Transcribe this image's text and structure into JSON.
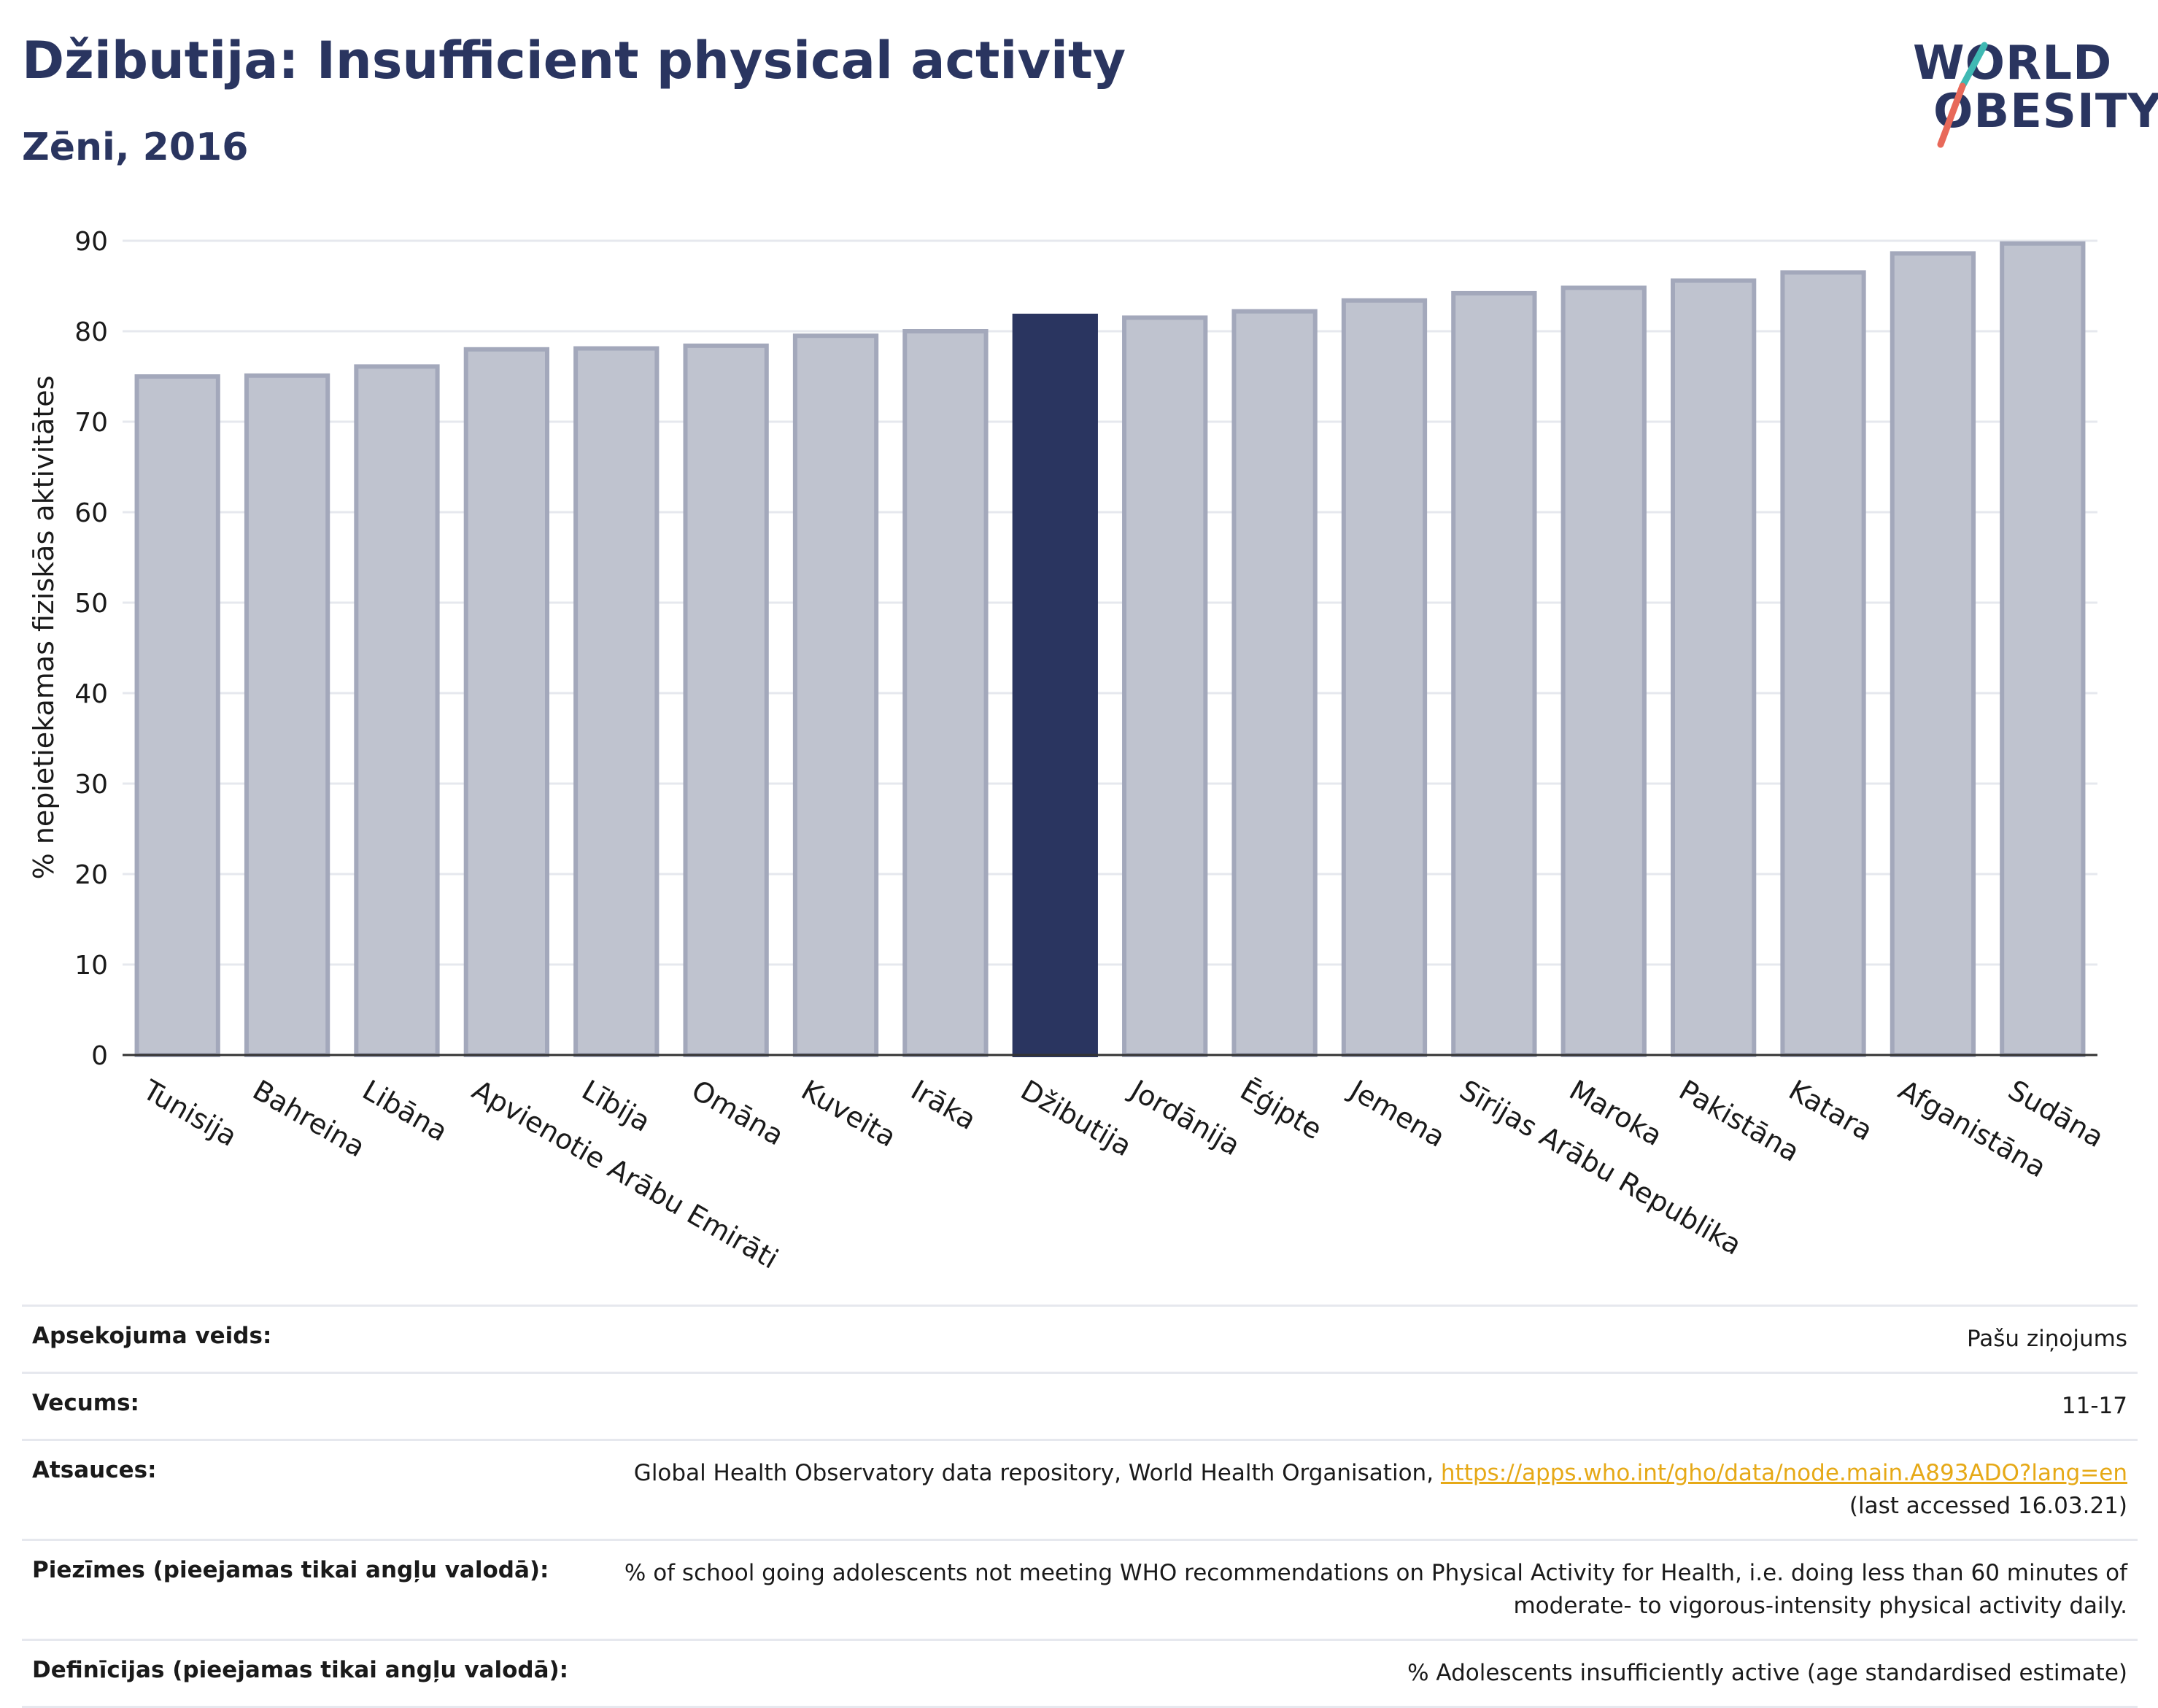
{
  "header": {
    "title": "Džibutija: Insufficient physical activity",
    "subtitle": "Zēni, 2016"
  },
  "logo": {
    "line1": "WORLD",
    "line2": "OBESITY"
  },
  "colors": {
    "highlight": "#2a3560",
    "bar": "#bfc3cf",
    "bar_border": "#a3a8bb",
    "link": "#e6a917"
  },
  "chart_data": {
    "type": "bar",
    "title": "Džibutija: Insufficient physical activity",
    "subtitle": "Zēni, 2016",
    "ylabel": "% nepietiekamas fiziskās aktivitātes",
    "xlabel": "",
    "ylim": [
      0,
      90
    ],
    "yticks": [
      0,
      10,
      20,
      30,
      40,
      50,
      60,
      70,
      80,
      90
    ],
    "grid": true,
    "highlight": "Džibutija",
    "categories": [
      "Tunisija",
      "Bahreina",
      "Libāna",
      "Apvienotie Arābu Emirāti",
      "Lībija",
      "Omāna",
      "Kuveita",
      "Irāka",
      "Džibutija",
      "Jordānija",
      "Ēģipte",
      "Jemena",
      "Sīrijas Arābu Republika",
      "Maroka",
      "Pakistāna",
      "Katara",
      "Afganistāna",
      "Sudāna"
    ],
    "values": [
      75.0,
      75.1,
      76.1,
      78.0,
      78.1,
      78.4,
      79.5,
      80.0,
      81.7,
      81.5,
      82.2,
      83.4,
      84.2,
      84.8,
      85.6,
      86.5,
      88.6,
      89.7
    ]
  },
  "meta": [
    {
      "label": "Apsekojuma veids:",
      "value": "Pašu ziņojums"
    },
    {
      "label": "Vecums:",
      "value": "11-17"
    },
    {
      "label": "Atsauces:",
      "value": "Global Health Observatory data repository, World Health Organisation, ",
      "link": "https://apps.who.int/gho/data/node.main.A893ADO?lang=en",
      "value_after": "(last accessed 16.03.21)"
    },
    {
      "label": "Piezīmes (pieejamas tikai angļu valodā):",
      "value": "% of school going adolescents not meeting WHO recommendations on Physical Activity for Health, i.e. doing less than 60 minutes of moderate- to vigorous-intensity physical activity daily."
    },
    {
      "label": "Definīcijas (pieejamas tikai angļu valodā):",
      "value": "% Adolescents insufficiently active (age standardised estimate)"
    }
  ]
}
